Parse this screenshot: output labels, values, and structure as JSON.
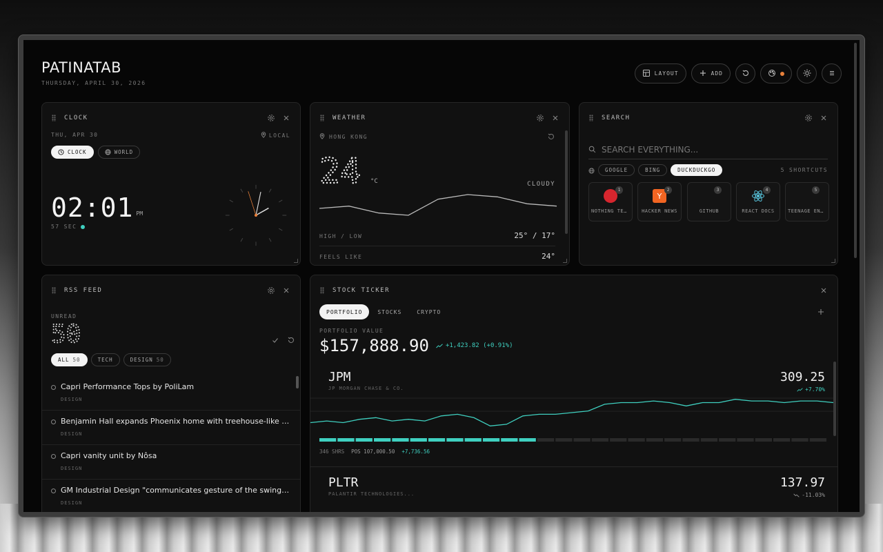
{
  "app": {
    "title": "PATINATAB",
    "date": "THURSDAY, APRIL 30, 2026"
  },
  "toolbar": {
    "layout_label": "LAYOUT",
    "add_label": "ADD"
  },
  "clock": {
    "title": "CLOCK",
    "date": "THU, APR 30",
    "zone": "LOCAL",
    "modes": [
      "CLOCK",
      "WORLD"
    ],
    "time": "02:01",
    "ampm": "PM",
    "seconds": "57 SEC",
    "hands": {
      "hour": 2,
      "minute": 1,
      "second": 57
    }
  },
  "weather": {
    "title": "WEATHER",
    "location": "HONG KONG",
    "temp": "24",
    "unit": "°C",
    "condition": "CLOUDY",
    "rows": [
      {
        "label": "HIGH / LOW",
        "value": "25° / 17°"
      },
      {
        "label": "FEELS LIKE",
        "value": "24°"
      }
    ],
    "trend": [
      24,
      24.2,
      23.6,
      23.4,
      24.8,
      25.2,
      25,
      24.4,
      24.2
    ]
  },
  "search": {
    "title": "SEARCH",
    "placeholder": "SEARCH EVERYTHING...",
    "engines": [
      "GOOGLE",
      "BING",
      "DUCKDUCKGO"
    ],
    "active_engine": "DUCKDUCKGO",
    "shortcut_count": "5 SHORTCUTS",
    "shortcuts": [
      {
        "n": "1",
        "label": "NOTHING TECH",
        "icon": "red-circle-icon",
        "color": "#d7262e"
      },
      {
        "n": "2",
        "label": "HACKER NEWS",
        "icon": "y-logo-icon",
        "color": "#f26522"
      },
      {
        "n": "3",
        "label": "GITHUB",
        "icon": "github-icon",
        "color": "#111111"
      },
      {
        "n": "4",
        "label": "REACT DOCS",
        "icon": "react-atom-icon",
        "color": "#58c4dc"
      },
      {
        "n": "5",
        "label": "TEENAGE ENGINEERING",
        "icon": "blank-icon",
        "color": "#141414"
      }
    ]
  },
  "rss": {
    "title": "RSS FEED",
    "unread_label": "UNREAD",
    "unread": "50",
    "filters": [
      {
        "label": "ALL",
        "count": "50"
      },
      {
        "label": "TECH",
        "count": ""
      },
      {
        "label": "DESIGN",
        "count": "50"
      }
    ],
    "items": [
      {
        "title": "Capri Performance Tops by PoliLam",
        "cat": "DESIGN"
      },
      {
        "title": "Benjamin Hall expands Phoenix home with treehouse-like addition",
        "cat": "DESIGN"
      },
      {
        "title": "Capri vanity unit by Nôsa",
        "cat": "DESIGN"
      },
      {
        "title": "GM Industrial Design \"communicates gesture of the swing\" with new",
        "cat": "DESIGN"
      }
    ]
  },
  "stock": {
    "title": "STOCK TICKER",
    "tabs": [
      "PORTFOLIO",
      "STOCKS",
      "CRYPTO"
    ],
    "value_label": "PORTFOLIO VALUE",
    "value": "$157,888.90",
    "change": "+1,423.82 (+0.91%)",
    "holdings": [
      {
        "symbol": "JPM",
        "name": "JP MORGAN CHASE & CO.",
        "price": "309.25",
        "change": "+7.70%",
        "shares": "346 SHRS",
        "pos": "POS 107,000.50",
        "gain": "+7,736.56",
        "progress": 0.43,
        "series": [
          296,
          297,
          296,
          298,
          299,
          297,
          298,
          297,
          300,
          301,
          299,
          294,
          295,
          300,
          301,
          301,
          302,
          303,
          307,
          308,
          308,
          309,
          308,
          306,
          308,
          308,
          310,
          309,
          309,
          308,
          309,
          309,
          308
        ]
      },
      {
        "symbol": "PLTR",
        "name": "PALANTIR TECHNOLOGIES...",
        "price": "137.97",
        "change": "-11.03%"
      }
    ]
  },
  "colors": {
    "accent": "#3fd0c0",
    "badge": "#e8803a"
  }
}
